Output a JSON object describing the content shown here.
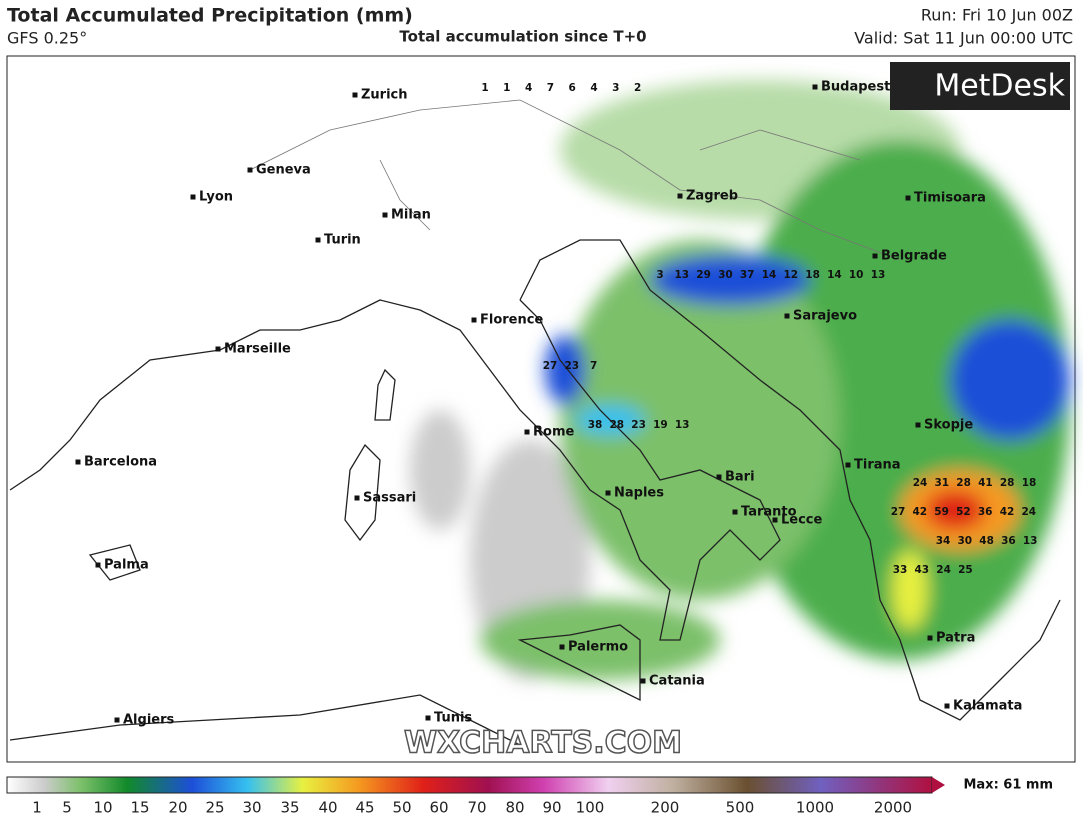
{
  "header": {
    "title": "Total Accumulated Precipitation (mm)",
    "model": "GFS 0.25°",
    "subtitle": "Total accumulation since T+0",
    "run": "Run: Fri 10 Jun 00Z",
    "valid": "Valid: Sat 11 Jun 00:00 UTC"
  },
  "map": {
    "logo": "MetDesk",
    "watermark": "WXCHARTS.COM",
    "cities": [
      "Zurich",
      "Geneva",
      "Lyon",
      "Milan",
      "Turin",
      "Marseille",
      "Florence",
      "Rome",
      "Barcelona",
      "Sassari",
      "Naples",
      "Palma",
      "Palermo",
      "Catania",
      "Algiers",
      "Tunis",
      "Budapest",
      "Zagreb",
      "Timisoara",
      "Belgrade",
      "Sarajevo",
      "Bari",
      "Taranto",
      "Lecce",
      "Tirana",
      "Skopje",
      "Patra",
      "Kalamata"
    ],
    "grid_rows": [
      [
        1,
        1,
        4,
        7,
        6,
        4,
        3,
        2
      ],
      [
        3,
        13,
        29,
        30,
        37,
        14,
        12,
        18,
        14,
        10,
        13
      ],
      [
        27,
        23,
        7
      ],
      [
        38,
        28,
        23,
        19,
        13
      ],
      [
        24,
        31,
        28,
        41,
        28,
        18
      ],
      [
        27,
        42,
        59,
        52,
        36,
        42,
        24
      ],
      [
        34,
        30,
        48,
        36,
        13
      ],
      [
        33,
        43,
        24,
        25
      ]
    ]
  },
  "legend": {
    "max": "Max: 61 mm",
    "ticks": [
      1,
      5,
      10,
      15,
      20,
      25,
      30,
      35,
      40,
      45,
      50,
      60,
      70,
      80,
      90,
      100,
      200,
      500,
      1000,
      2000
    ]
  }
}
